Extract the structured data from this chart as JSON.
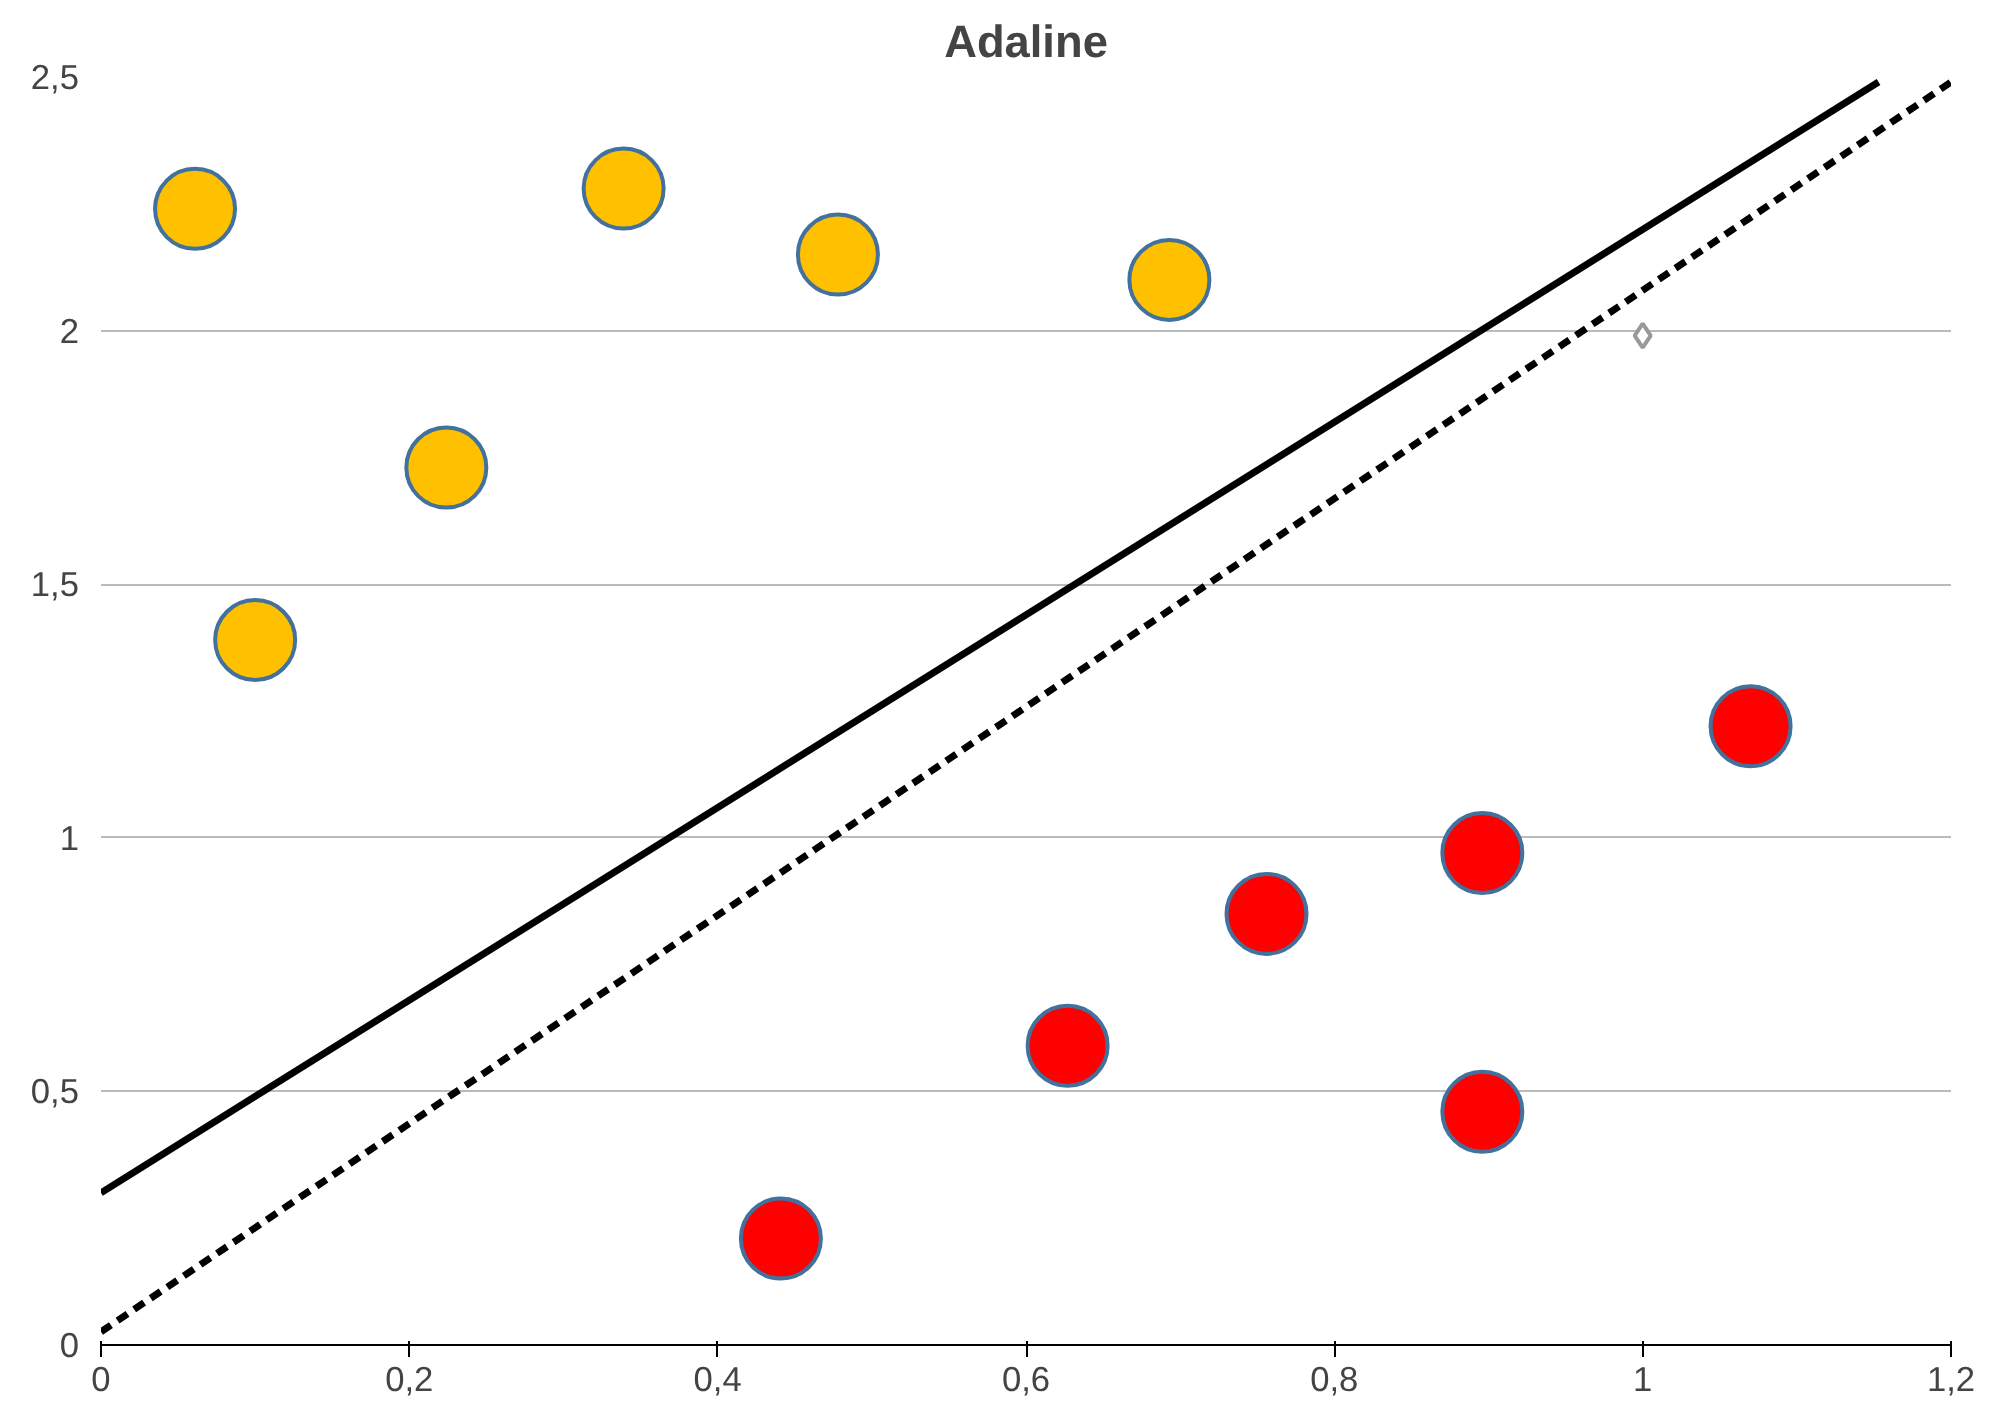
{
  "chart_data": {
    "type": "scatter",
    "title": "Adaline",
    "xlim": [
      0,
      1.2
    ],
    "ylim": [
      0,
      2.5
    ],
    "xticks": [
      0,
      {
        "value": 0.2,
        "label": "0,2"
      },
      {
        "value": 0.4,
        "label": "0,4"
      },
      {
        "value": 0.6,
        "label": "0,6"
      },
      {
        "value": 0.8,
        "label": "0,8"
      },
      1,
      {
        "value": 1.2,
        "label": "1,2"
      }
    ],
    "yticks": [
      0,
      {
        "value": 0.5,
        "label": "0,5"
      },
      1,
      {
        "value": 1.5,
        "label": "1,5"
      },
      2,
      {
        "value": 2.5,
        "label": "2,5"
      }
    ],
    "grid": "y",
    "marker": "circle",
    "series": [
      {
        "color": "#ffc000",
        "x": [
          0.061,
          0.1,
          0.224,
          0.339,
          0.478,
          0.693
        ],
        "values": [
          2.24,
          1.39,
          1.73,
          2.28,
          2.15,
          2.1
        ]
      },
      {
        "color": "#ff0000",
        "x": [
          0.441,
          0.627,
          0.756,
          0.896,
          0.896,
          1.07
        ],
        "values": [
          0.21,
          0.59,
          0.85,
          0.97,
          0.46,
          1.22
        ]
      },
      {
        "color": "#ffffff",
        "marker": "diamond",
        "x": [
          1.0
        ],
        "values": [
          1.99
        ]
      },
      {
        "type": "line",
        "color": "#000000",
        "line_style": "solid",
        "marker": "none",
        "x": [
          0,
          1.153
        ],
        "values": [
          0.3,
          2.49
        ]
      },
      {
        "type": "line",
        "color": "#000000",
        "line_style": "dashed",
        "marker": "none",
        "x": [
          0,
          1.2
        ],
        "values": [
          0.026,
          2.49
        ]
      }
    ]
  }
}
